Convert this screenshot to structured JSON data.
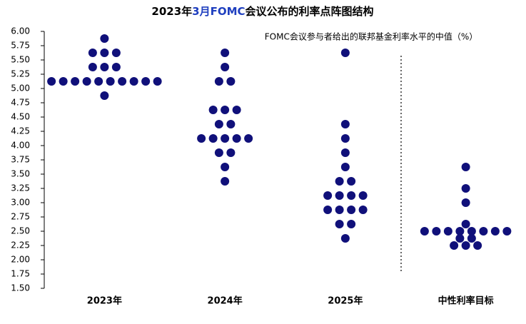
{
  "chart_data": {
    "type": "dot",
    "title": [
      "2023年",
      "3月FOMC",
      "会议公布的利率点阵图结构"
    ],
    "subtitle": "FOMC会议参与者给出的联邦基金利率水平的中值（%）",
    "categories": [
      "2023年",
      "2024年",
      "2025年",
      "中性利率目标"
    ],
    "values": [
      [
        5.875,
        5.625,
        5.625,
        5.625,
        5.375,
        5.375,
        5.375,
        5.125,
        5.125,
        5.125,
        5.125,
        5.125,
        5.125,
        5.125,
        5.125,
        5.125,
        5.125,
        4.875
      ],
      [
        5.625,
        5.375,
        5.125,
        5.125,
        4.625,
        4.625,
        4.625,
        4.375,
        4.375,
        4.125,
        4.125,
        4.125,
        4.125,
        4.125,
        3.875,
        3.875,
        3.625,
        3.375
      ],
      [
        5.625,
        4.375,
        4.125,
        3.875,
        3.625,
        3.375,
        3.375,
        3.125,
        3.125,
        3.125,
        3.125,
        2.875,
        2.875,
        2.875,
        2.875,
        2.625,
        2.625,
        2.375
      ],
      [
        3.625,
        3.25,
        3.0,
        2.625,
        2.5,
        2.5,
        2.5,
        2.5,
        2.5,
        2.5,
        2.5,
        2.5,
        2.375,
        2.375,
        2.25,
        2.25,
        2.25
      ]
    ],
    "color": "#10107a",
    "ylim": [
      1.5,
      6.0
    ],
    "yticks": [
      {
        "value": 1.5,
        "label": "1.50"
      },
      {
        "value": 1.75,
        "label": "1.75"
      },
      {
        "value": 2.0,
        "label": "2.00"
      },
      {
        "value": 2.25,
        "label": "2.25"
      },
      {
        "value": 2.5,
        "label": "2.50"
      },
      {
        "value": 2.75,
        "label": "2.75"
      },
      {
        "value": 3.0,
        "label": "3.00"
      },
      {
        "value": 3.25,
        "label": "3.25"
      },
      {
        "value": 3.5,
        "label": "3.50"
      },
      {
        "value": 3.75,
        "label": "3.75"
      },
      {
        "value": 4.0,
        "label": "4.00"
      },
      {
        "value": 4.25,
        "label": "4.25"
      },
      {
        "value": 4.5,
        "label": "4.50"
      },
      {
        "value": 4.75,
        "label": "4.75"
      },
      {
        "value": 5.0,
        "label": "5.00"
      },
      {
        "value": 5.25,
        "label": "5.25"
      },
      {
        "value": 5.5,
        "label": "5.50"
      },
      {
        "value": 5.75,
        "label": "5.75"
      },
      {
        "value": 6.0,
        "label": "6.00"
      }
    ]
  }
}
